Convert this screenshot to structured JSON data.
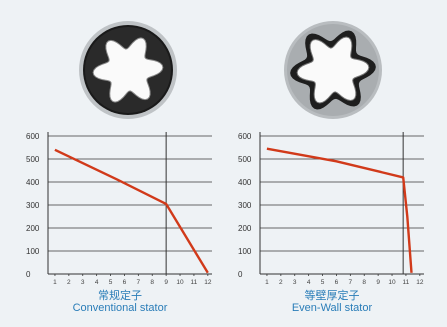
{
  "chart_data": [
    {
      "type": "line",
      "title_cn": "常规定子",
      "title_en": "Conventional stator",
      "xlim": [
        0.5,
        12.3
      ],
      "ylim": [
        0,
        600
      ],
      "x_ticks": [
        1,
        2,
        3,
        4,
        5,
        6,
        7,
        8,
        9,
        10,
        11,
        12
      ],
      "y_ticks": [
        0,
        100,
        200,
        300,
        400,
        500,
        600
      ],
      "grid": "horizontal",
      "vertical_marker_x": 9,
      "series": [
        {
          "x": [
            1,
            5.5,
            9,
            12
          ],
          "y": [
            540,
            410,
            305,
            5
          ]
        }
      ]
    },
    {
      "type": "line",
      "title_cn": "等壁厚定子",
      "title_en": "Even-Wall stator",
      "xlim": [
        0.5,
        12.3
      ],
      "ylim": [
        0,
        600
      ],
      "x_ticks": [
        1,
        2,
        3,
        4,
        5,
        6,
        7,
        8,
        9,
        10,
        11,
        12
      ],
      "y_ticks": [
        0,
        100,
        200,
        300,
        400,
        500,
        600
      ],
      "grid": "horizontal",
      "vertical_marker_x": 10.8,
      "series": [
        {
          "x": [
            1,
            6,
            10.8,
            11.1,
            11.4
          ],
          "y": [
            545,
            490,
            420,
            250,
            5
          ]
        }
      ]
    }
  ],
  "colors": {
    "curve": "#d13a1a",
    "grid": "#666666",
    "axis": "#333333",
    "caption": "#2a7db8"
  },
  "icons": [
    "conventional-stator-icon",
    "even-wall-stator-icon"
  ]
}
